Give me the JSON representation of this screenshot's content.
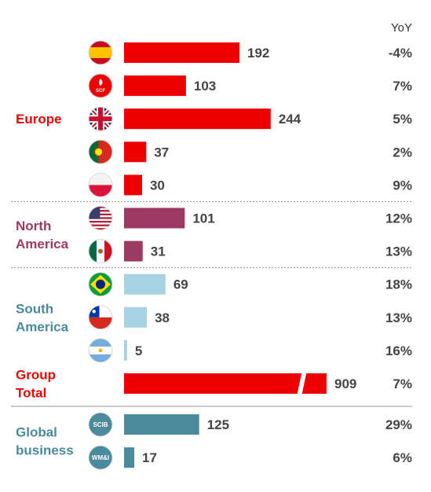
{
  "chart_data": {
    "type": "bar",
    "yoy_header": "YoY",
    "colors": {
      "europe": "#ec0000",
      "north_america": "#9c3a62",
      "south_america": "#a8d2e4",
      "group_total": "#ec0000",
      "global_business": "#4a8a9c",
      "group_total_yoy": "#ec0000"
    },
    "xlim": [
      0,
      909
    ],
    "groups": [
      {
        "label_lines": [
          "Europe"
        ],
        "label_color": "#ec0000",
        "bars": [
          {
            "icon": "spain-flag-icon",
            "value": 192,
            "yoy": "-4%"
          },
          {
            "icon": "santander-consumer-finance-icon",
            "badge_text": "SCF",
            "value": 103,
            "yoy": "7%"
          },
          {
            "icon": "united-kingdom-flag-icon",
            "value": 244,
            "yoy": "5%"
          },
          {
            "icon": "portugal-flag-icon",
            "value": 37,
            "yoy": "2%"
          },
          {
            "icon": "poland-flag-icon",
            "value": 30,
            "yoy": "9%"
          }
        ]
      },
      {
        "label_lines": [
          "North",
          "America"
        ],
        "label_color": "#9c3a62",
        "bars": [
          {
            "icon": "united-states-flag-icon",
            "value": 101,
            "yoy": "12%"
          },
          {
            "icon": "mexico-flag-icon",
            "value": 31,
            "yoy": "13%"
          }
        ]
      },
      {
        "label_lines": [
          "South",
          "America"
        ],
        "label_color": "#4a8a9c",
        "bars": [
          {
            "icon": "brazil-flag-icon",
            "value": 69,
            "yoy": "18%"
          },
          {
            "icon": "chile-flag-icon",
            "value": 38,
            "yoy": "13%"
          },
          {
            "icon": "argentina-flag-icon",
            "value": 5,
            "yoy": "16%"
          }
        ]
      },
      {
        "label_lines": [
          "Group",
          "Total"
        ],
        "label_color": "#ec0000",
        "bars": [
          {
            "icon": "",
            "value": 909,
            "yoy": "7%",
            "broken_axis": true
          }
        ]
      },
      {
        "label_lines": [
          "Global",
          "business"
        ],
        "label_color": "#4a8a9c",
        "bars": [
          {
            "icon": "scib-badge-icon",
            "badge_text": "SCIB",
            "value": 125,
            "yoy": "29%"
          },
          {
            "icon": "wmi-badge-icon",
            "badge_text": "WM&I",
            "value": 17,
            "yoy": "6%"
          }
        ]
      }
    ]
  }
}
